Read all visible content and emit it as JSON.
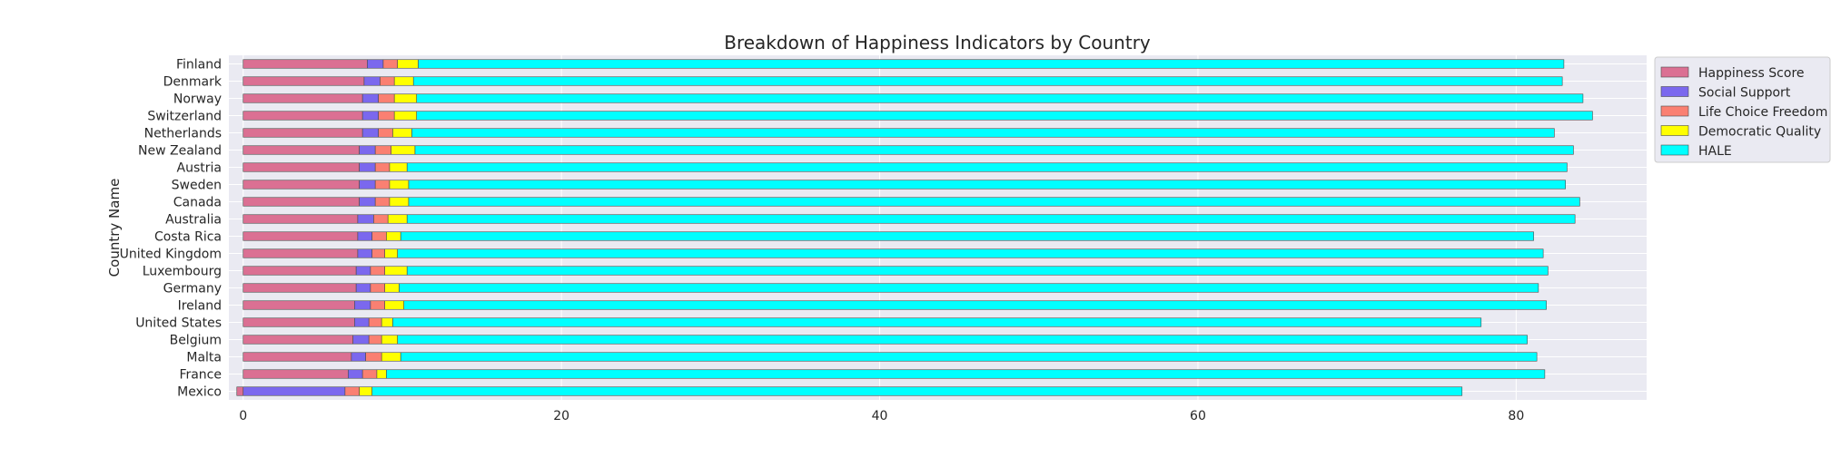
{
  "chart_data": {
    "type": "bar",
    "orientation": "horizontal",
    "stacked": true,
    "title": "Breakdown of Happiness Indicators by Country",
    "xlabel": "",
    "ylabel": "Country Name",
    "xlim": [
      -0.9,
      88.2
    ],
    "xticks": [
      0,
      20,
      40,
      60,
      80
    ],
    "grid": true,
    "legend_position": "right",
    "categories": [
      "Finland",
      "Denmark",
      "Norway",
      "Switzerland",
      "Netherlands",
      "New Zealand",
      "Austria",
      "Sweden",
      "Canada",
      "Australia",
      "Costa Rica",
      "United Kingdom",
      "Luxembourg",
      "Germany",
      "Ireland",
      "United States",
      "Belgium",
      "Malta",
      "France",
      "Mexico"
    ],
    "series": [
      {
        "name": "Happiness Score",
        "color": "#db7093",
        "values": [
          7.8,
          7.6,
          7.5,
          7.5,
          7.5,
          7.3,
          7.3,
          7.3,
          7.3,
          7.2,
          7.2,
          7.2,
          7.1,
          7.1,
          7.0,
          7.0,
          6.9,
          6.8,
          6.6,
          -0.4
        ]
      },
      {
        "name": "Social Support",
        "color": "#7b68ee",
        "values": [
          1.0,
          1.0,
          1.0,
          1.0,
          1.0,
          1.0,
          1.0,
          1.0,
          1.0,
          1.0,
          0.9,
          0.9,
          0.9,
          0.9,
          1.0,
          0.9,
          1.0,
          0.9,
          0.9,
          6.4
        ]
      },
      {
        "name": "Life Choice Freedom",
        "color": "#fa8072",
        "values": [
          0.9,
          0.9,
          1.0,
          1.0,
          0.9,
          1.0,
          0.9,
          0.9,
          0.9,
          0.9,
          0.9,
          0.8,
          0.9,
          0.9,
          0.9,
          0.8,
          0.8,
          1.0,
          0.9,
          0.9
        ]
      },
      {
        "name": "Democratic Quality",
        "color": "#ffff00",
        "values": [
          1.3,
          1.2,
          1.4,
          1.4,
          1.2,
          1.5,
          1.1,
          1.2,
          1.2,
          1.2,
          0.9,
          0.8,
          1.4,
          0.9,
          1.2,
          0.7,
          1.0,
          1.2,
          0.6,
          0.8
        ]
      },
      {
        "name": "HALE",
        "color": "#00ffff",
        "values": [
          72.0,
          72.2,
          73.3,
          73.9,
          71.8,
          72.8,
          72.9,
          72.7,
          73.6,
          73.4,
          71.2,
          72.0,
          71.7,
          71.6,
          71.8,
          68.4,
          71.0,
          71.4,
          72.8,
          68.5
        ]
      }
    ]
  }
}
